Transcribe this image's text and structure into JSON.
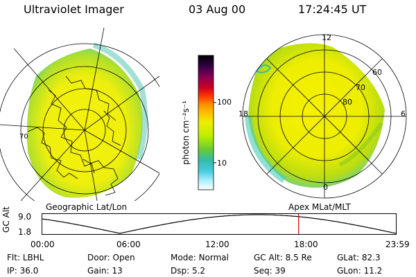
{
  "header": {
    "instrument": "Ultraviolet Imager",
    "date": "03 Aug 00",
    "time": "17:24:45 UT"
  },
  "left_panel": {
    "caption": "Geographic Lat/Lon"
  },
  "right_panel": {
    "caption": "Apex MLat/MLT",
    "mlt_labels": [
      "12",
      "18",
      "6",
      "0"
    ],
    "lat_labels": [
      "60",
      "70",
      "80"
    ]
  },
  "colorbar": {
    "label": "photon cm⁻²s⁻¹",
    "tick_labels": [
      "100",
      "10"
    ],
    "colors": [
      "#000000",
      "#220033",
      "#550055",
      "#880055",
      "#aa0044",
      "#cc0022",
      "#ee3300",
      "#ff8800",
      "#ffaa00",
      "#ffcc00",
      "#eeee00",
      "#ccee00",
      "#99dd00",
      "#66cc33",
      "#33bb88",
      "#33cccc",
      "#66ddee",
      "#bbeeff",
      "#ffffff"
    ]
  },
  "orbit_plot": {
    "ylabel": "GC Alt",
    "yticks": [
      "9.0",
      "1.8"
    ],
    "xticks": [
      "00:00",
      "06:00",
      "12:00",
      "18:00",
      "23:59"
    ],
    "current_time_hours": 17.41,
    "trace_color": "#000000",
    "marker_color": "#cc0000"
  },
  "footer": {
    "row1": [
      {
        "label": "Flt:",
        "value": "LBHL"
      },
      {
        "label": "Door:",
        "value": "Open"
      },
      {
        "label": "Mode:",
        "value": "Normal"
      },
      {
        "label": "GC Alt:",
        "value": "8.5 Re"
      },
      {
        "label": "GLat:",
        "value": "82.3"
      }
    ],
    "row2": [
      {
        "label": "IP:",
        "value": "36.0"
      },
      {
        "label": "Gain:",
        "value": "13"
      },
      {
        "label": "Dsp:",
        "value": "5.2"
      },
      {
        "label": "Seq:",
        "value": "39"
      },
      {
        "label": "GLon:",
        "value": "11.2"
      }
    ]
  }
}
